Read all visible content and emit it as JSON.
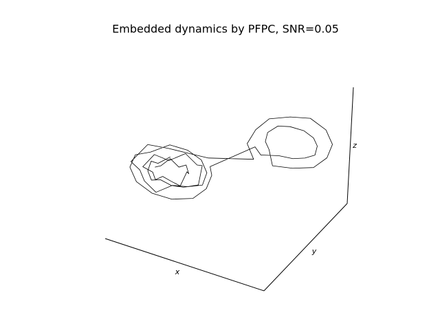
{
  "chart_data": {
    "type": "line3d",
    "title": "Embedded dynamics by PFPC, SNR=0.05",
    "xlabel": "x",
    "ylabel": "y",
    "zlabel": "z",
    "color": "#000000",
    "xlim": [
      0.15,
      0.95
    ],
    "ylim": [
      0.15,
      0.95
    ],
    "zlim": [
      0,
      1
    ],
    "x": [
      0.82,
      0.81,
      0.78,
      0.74,
      0.7,
      0.67,
      0.66,
      0.67,
      0.7,
      0.74,
      0.78,
      0.81,
      0.88,
      0.86,
      0.81,
      0.74,
      0.67,
      0.62,
      0.6,
      0.62,
      0.67,
      0.74,
      0.81,
      0.86,
      0.94,
      0.91,
      0.84,
      0.74,
      0.64,
      0.45,
      0.52,
      0.53,
      0.51,
      0.44,
      0.35,
      0.26,
      0.19,
      0.17,
      0.19,
      0.26,
      0.35,
      0.41,
      0.45,
      0.47,
      0.45,
      0.41,
      0.35,
      0.29,
      0.25,
      0.23,
      0.25,
      0.29,
      0.35,
      0.43,
      0.49,
      0.61,
      0.58,
      0.56,
      0.58,
      0.65,
      0.74,
      0.83,
      0.9,
      0.92,
      0.88,
      0.82,
      0.74,
      0.66,
      0.6,
      0.58,
      0.65,
      0.69,
      0.74,
      0.79,
      0.83,
      0.84,
      0.83,
      0.79
    ],
    "y": [
      0.35,
      0.39,
      0.42,
      0.43,
      0.42,
      0.39,
      0.35,
      0.31,
      0.28,
      0.27,
      0.28,
      0.31,
      0.35,
      0.42,
      0.47,
      0.49,
      0.47,
      0.42,
      0.35,
      0.28,
      0.23,
      0.21,
      0.23,
      0.28,
      0.35,
      0.45,
      0.52,
      0.55,
      0.52,
      0.59,
      0.66,
      0.76,
      0.85,
      0.92,
      0.94,
      0.92,
      0.85,
      0.76,
      0.67,
      0.6,
      0.58,
      0.66,
      0.7,
      0.76,
      0.82,
      0.86,
      0.88,
      0.86,
      0.82,
      0.76,
      0.7,
      0.66,
      0.64,
      0.62,
      0.68,
      0.48,
      0.44,
      0.35,
      0.26,
      0.19,
      0.17,
      0.19,
      0.26,
      0.35,
      0.42,
      0.49,
      0.51,
      0.49,
      0.43,
      0.35,
      0.3,
      0.26,
      0.25,
      0.26,
      0.3,
      0.35,
      0.4,
      0.44
    ],
    "z": [
      0.5,
      0.48,
      0.53,
      0.47,
      0.52,
      0.49,
      0.55,
      0.46,
      0.51,
      0.54,
      0.48,
      0.5,
      0.47,
      0.52,
      0.45,
      0.53,
      0.49,
      0.56,
      0.47,
      0.51,
      0.54,
      0.46,
      0.5,
      0.52,
      0.48,
      0.55,
      0.49,
      0.47,
      0.52,
      0.55,
      0.58,
      0.6,
      0.62,
      0.61,
      0.63,
      0.6,
      0.58,
      0.56,
      0.55,
      0.57,
      0.56,
      0.59,
      0.6,
      0.61,
      0.62,
      0.6,
      0.58,
      0.57,
      0.56,
      0.55,
      0.57,
      0.58,
      0.59,
      0.57,
      0.55,
      0.5,
      0.48,
      0.46,
      0.45,
      0.47,
      0.49,
      0.52,
      0.54,
      0.55,
      0.53,
      0.56,
      0.54,
      0.52,
      0.5,
      0.48,
      0.47,
      0.5,
      0.53,
      0.49,
      0.51,
      0.54,
      0.48,
      0.52
    ]
  }
}
